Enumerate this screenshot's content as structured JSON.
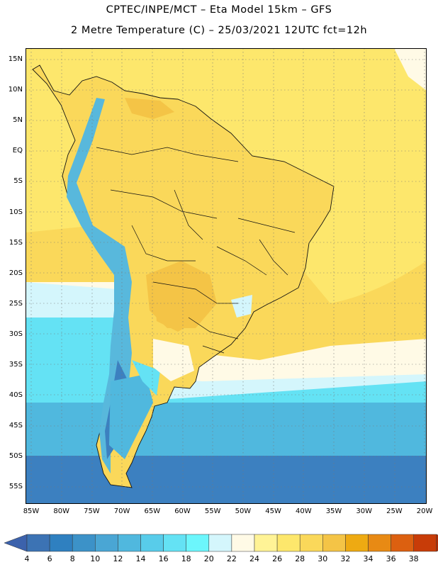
{
  "title_line1": "CPTEC/INPE/MCT –  Eta Model 15km – GFS",
  "title_line2": "2 Metre Temperature (C) – 25/03/2021 12UTC fct=12h",
  "lat_labels": [
    "15N",
    "10N",
    "5N",
    "EQ",
    "5S",
    "10S",
    "15S",
    "20S",
    "25S",
    "30S",
    "35S",
    "40S",
    "45S",
    "50S",
    "55S"
  ],
  "lon_labels": [
    "85W",
    "80W",
    "75W",
    "70W",
    "65W",
    "60W",
    "55W",
    "50W",
    "45W",
    "40W",
    "35W",
    "30W",
    "25W",
    "20W"
  ],
  "colorbar": {
    "labels": [
      "4",
      "6",
      "8",
      "10",
      "12",
      "14",
      "16",
      "18",
      "20",
      "22",
      "24",
      "26",
      "28",
      "30",
      "32",
      "34",
      "36",
      "38"
    ],
    "colors": [
      "#3c73b4",
      "#2f80c0",
      "#3c92c8",
      "#4aa6d4",
      "#50b8de",
      "#58ccea",
      "#64e2f4",
      "#6cf6fc",
      "#d4f6fc",
      "#fffae6",
      "#fff396",
      "#fde76c",
      "#fad85a",
      "#f4c446",
      "#eeaa12",
      "#e88a14",
      "#dc6010",
      "#c83c08",
      "#b02e06",
      "#3c62ac"
    ],
    "low_arrow_color": "#3c62ac",
    "high_arrow_color": "#b02e06"
  },
  "map": {
    "ocean_warm": "#fad85a",
    "ocean_mid": "#fde76c",
    "ocean_pale": "#fffae6",
    "ocean_cool": "#d4f6fc",
    "ocean_cold": "#64e2f4",
    "ocean_colder": "#50b8de",
    "ocean_coldest": "#3c80c0",
    "land_base": "#fad85a",
    "land_hot": "#f4c446",
    "andes": "#58b8dc",
    "andes_peak": "#3c80c0"
  }
}
